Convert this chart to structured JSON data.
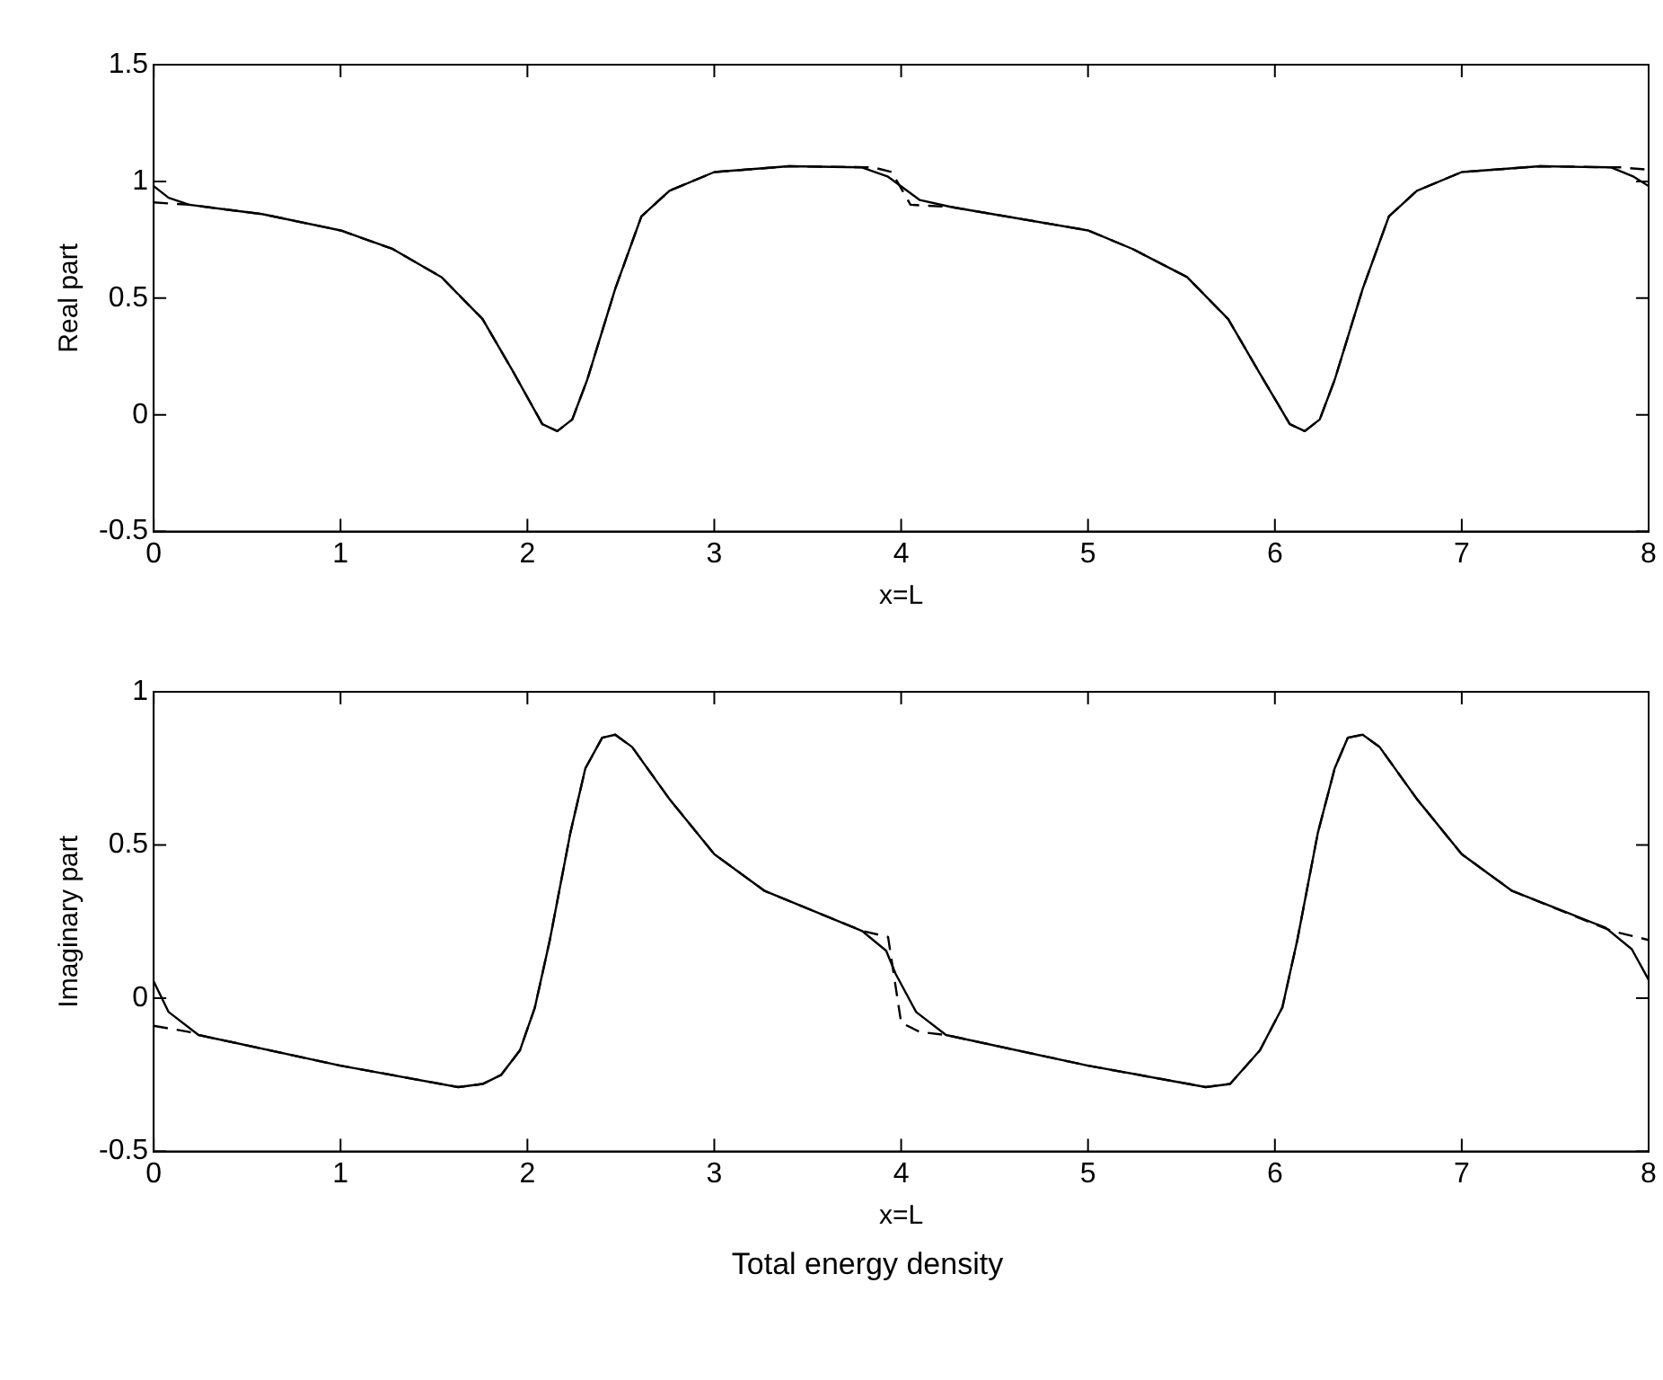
{
  "chart_data": [
    {
      "type": "line",
      "xlabel": "x=L",
      "ylabel": "Real part",
      "xlim": [
        0,
        8
      ],
      "ylim": [
        -0.5,
        1.5
      ],
      "xticks": [
        0,
        1,
        2,
        3,
        4,
        5,
        6,
        7,
        8
      ],
      "yticks": [
        -0.5,
        0,
        0.5,
        1,
        1.5
      ],
      "grid": false,
      "legend": false,
      "series": [
        {
          "color": "#000000",
          "line_style": "solid",
          "x": [
            0,
            0.08,
            0.19,
            0.58,
            1.0,
            1.28,
            1.54,
            1.76,
            1.92,
            2.08,
            2.16,
            2.24,
            2.32,
            2.47,
            2.61,
            2.76,
            3.0,
            3.4,
            3.79,
            3.93,
            4.1,
            4.27,
            5.0,
            5.24,
            5.53,
            5.75,
            5.91,
            6.08,
            6.16,
            6.24,
            6.32,
            6.47,
            6.61,
            6.76,
            7.0,
            7.42,
            7.8,
            7.92,
            8.0
          ],
          "values": [
            0.98,
            0.93,
            0.9,
            0.86,
            0.79,
            0.71,
            0.59,
            0.41,
            0.19,
            -0.04,
            -0.07,
            -0.02,
            0.15,
            0.54,
            0.85,
            0.96,
            1.04,
            1.065,
            1.06,
            1.02,
            0.92,
            0.89,
            0.79,
            0.71,
            0.59,
            0.41,
            0.19,
            -0.04,
            -0.07,
            -0.02,
            0.15,
            0.54,
            0.85,
            0.96,
            1.04,
            1.065,
            1.06,
            1.02,
            0.98
          ]
        },
        {
          "color": "#000000",
          "line_style": "dashed",
          "x": [
            0,
            0.19,
            0.58,
            1.0,
            1.28,
            1.54,
            1.76,
            1.92,
            2.08,
            2.16,
            2.24,
            2.32,
            2.47,
            2.61,
            2.76,
            3.0,
            3.4,
            3.85,
            3.95,
            4.05,
            4.27,
            5.0,
            5.24,
            5.53,
            5.75,
            5.91,
            6.08,
            6.16,
            6.24,
            6.32,
            6.47,
            6.61,
            6.76,
            7.0,
            7.42,
            7.85,
            8.0
          ],
          "values": [
            0.91,
            0.9,
            0.86,
            0.79,
            0.71,
            0.59,
            0.41,
            0.19,
            -0.04,
            -0.07,
            -0.02,
            0.15,
            0.54,
            0.85,
            0.96,
            1.04,
            1.065,
            1.06,
            1.04,
            0.9,
            0.89,
            0.79,
            0.71,
            0.59,
            0.41,
            0.19,
            -0.04,
            -0.07,
            -0.02,
            0.15,
            0.54,
            0.85,
            0.96,
            1.04,
            1.065,
            1.06,
            1.05
          ]
        }
      ]
    },
    {
      "type": "line",
      "xlabel": "x=L",
      "ylabel": "Imaginary part",
      "xlim": [
        0,
        8
      ],
      "ylim": [
        -0.5,
        1
      ],
      "xticks": [
        0,
        1,
        2,
        3,
        4,
        5,
        6,
        7,
        8
      ],
      "yticks": [
        -0.5,
        0,
        0.5,
        1
      ],
      "grid": false,
      "legend": false,
      "annotations": [
        "Total energy density"
      ],
      "series": [
        {
          "color": "#000000",
          "line_style": "solid",
          "x": [
            0,
            0.08,
            0.24,
            1.0,
            1.63,
            1.76,
            1.86,
            1.96,
            2.04,
            2.12,
            2.23,
            2.31,
            2.4,
            2.47,
            2.56,
            2.76,
            3.0,
            3.27,
            3.79,
            3.92,
            3.97,
            4.08,
            4.24,
            5.0,
            5.63,
            5.76,
            5.92,
            6.04,
            6.12,
            6.23,
            6.32,
            6.39,
            6.47,
            6.56,
            6.76,
            7.0,
            7.27,
            7.77,
            7.91,
            8.0
          ],
          "values": [
            0.055,
            -0.045,
            -0.12,
            -0.22,
            -0.29,
            -0.28,
            -0.25,
            -0.17,
            -0.03,
            0.19,
            0.54,
            0.75,
            0.85,
            0.86,
            0.82,
            0.65,
            0.47,
            0.35,
            0.22,
            0.155,
            0.08,
            -0.045,
            -0.12,
            -0.22,
            -0.29,
            -0.28,
            -0.17,
            -0.03,
            0.19,
            0.54,
            0.75,
            0.85,
            0.86,
            0.82,
            0.65,
            0.47,
            0.35,
            0.23,
            0.16,
            0.06
          ]
        },
        {
          "color": "#000000",
          "line_style": "dashed",
          "x": [
            0,
            0.19,
            0.24,
            1.0,
            1.63,
            1.76,
            1.86,
            1.96,
            2.04,
            2.12,
            2.23,
            2.31,
            2.4,
            2.47,
            2.56,
            2.76,
            3.0,
            3.27,
            3.79,
            3.93,
            4.0,
            4.1,
            4.24,
            5.0,
            5.63,
            5.76,
            5.92,
            6.04,
            6.12,
            6.23,
            6.32,
            6.39,
            6.47,
            6.56,
            6.76,
            7.0,
            7.27,
            7.8,
            8.0
          ],
          "values": [
            -0.09,
            -0.11,
            -0.12,
            -0.22,
            -0.29,
            -0.28,
            -0.25,
            -0.17,
            -0.03,
            0.19,
            0.54,
            0.75,
            0.85,
            0.86,
            0.82,
            0.65,
            0.47,
            0.35,
            0.22,
            0.2,
            -0.08,
            -0.11,
            -0.12,
            -0.22,
            -0.29,
            -0.28,
            -0.17,
            -0.03,
            0.19,
            0.54,
            0.75,
            0.85,
            0.86,
            0.82,
            0.65,
            0.47,
            0.35,
            0.22,
            0.19
          ]
        }
      ]
    }
  ]
}
